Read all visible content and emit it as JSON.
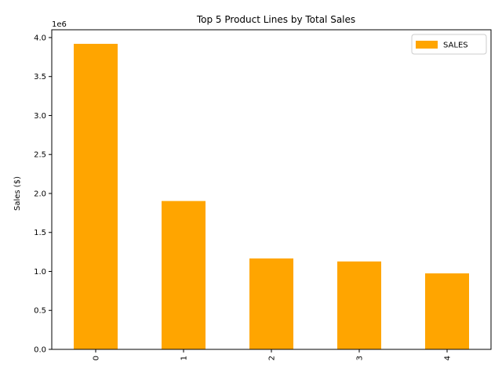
{
  "chart_data": {
    "type": "bar",
    "title": "Top 5 Product Lines by Total Sales",
    "xlabel": "",
    "ylabel": "Sales ($)",
    "categories": [
      "0",
      "1",
      "2",
      "3",
      "4"
    ],
    "series": [
      {
        "name": "SALES",
        "values": [
          3919616,
          1903151,
          1166388,
          1127790,
          975004
        ],
        "color": "#FFA500"
      }
    ],
    "ylim": [
      0,
      4100000
    ],
    "y_ticks": [
      0,
      500000,
      1000000,
      1500000,
      2000000,
      2500000,
      3000000,
      3500000,
      4000000
    ],
    "y_tick_labels": [
      "0.0",
      "0.5",
      "1.0",
      "1.5",
      "2.0",
      "2.5",
      "3.0",
      "3.5",
      "4.0"
    ],
    "y_offset_label": "1e6",
    "x_tick_rotation": 90,
    "legend": "top-right",
    "grid": false
  }
}
